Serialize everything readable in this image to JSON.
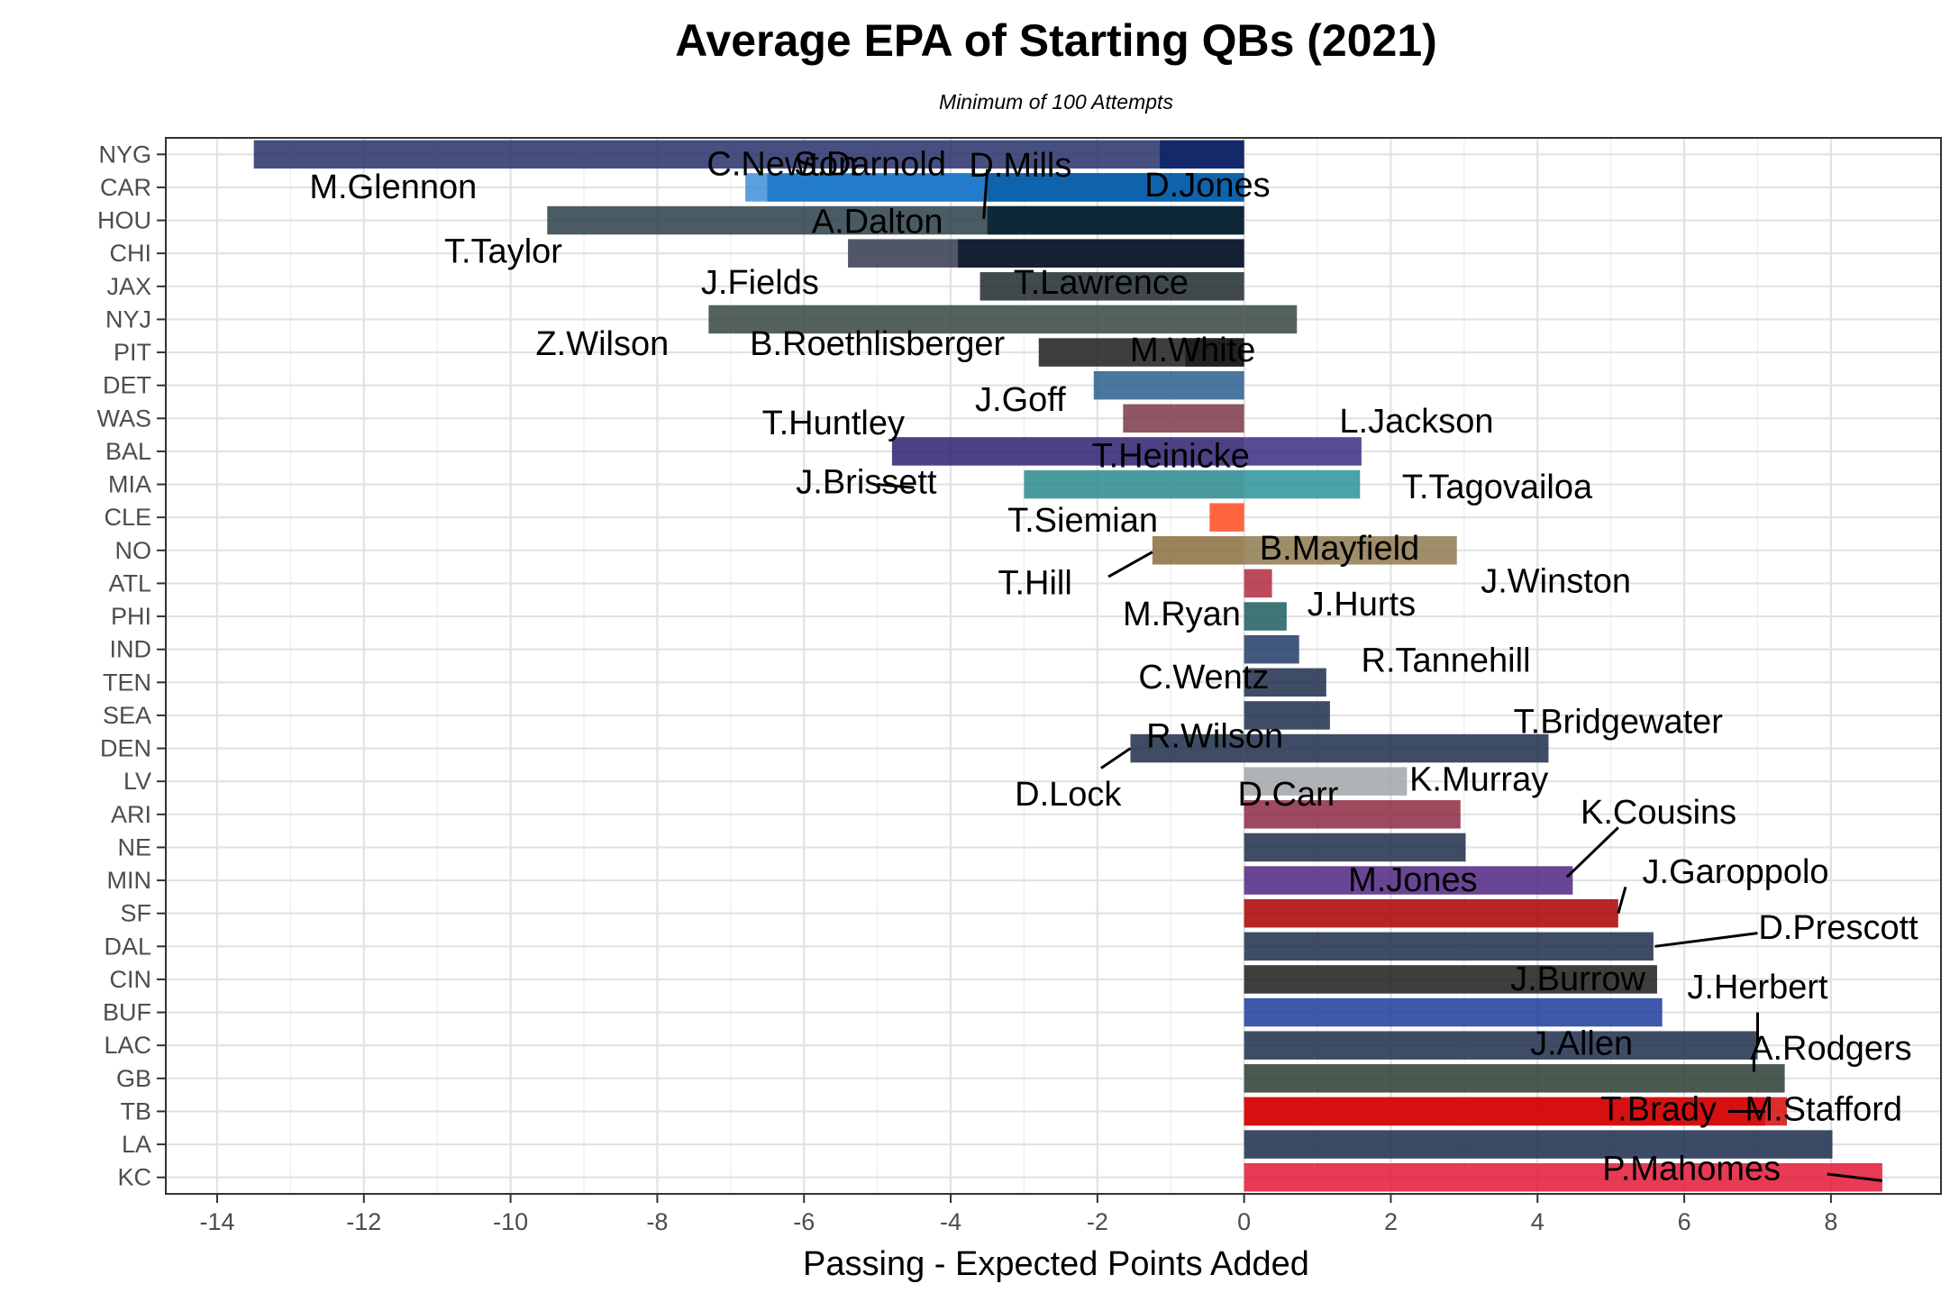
{
  "chart_data": {
    "type": "bar",
    "orientation": "horizontal",
    "title": "Average EPA of Starting QBs (2021)",
    "subtitle": "Minimum of 100 Attempts",
    "xlabel": "Passing - Expected Points Added",
    "ylabel": "",
    "xlim": [
      -14.7,
      9.5
    ],
    "xticks": [
      -14,
      -12,
      -10,
      -8,
      -6,
      -4,
      -2,
      0,
      2,
      4,
      6,
      8
    ],
    "grid": true,
    "legend": "none",
    "categories": [
      "NYG",
      "CAR",
      "HOU",
      "CHI",
      "JAX",
      "NYJ",
      "PIT",
      "DET",
      "WAS",
      "BAL",
      "MIA",
      "CLE",
      "NO",
      "ATL",
      "PHI",
      "IND",
      "TEN",
      "SEA",
      "DEN",
      "LV",
      "ARI",
      "NE",
      "MIN",
      "SF",
      "DAL",
      "CIN",
      "BUF",
      "LAC",
      "GB",
      "TB",
      "LA",
      "KC"
    ],
    "bars": [
      {
        "team": "NYG",
        "value": -13.5,
        "color": "#27306a"
      },
      {
        "team": "NYG",
        "value": -1.15,
        "color": "#0b2265"
      },
      {
        "team": "CAR",
        "value": -6.8,
        "color": "#3d8fd8"
      },
      {
        "team": "CAR",
        "value": -6.5,
        "color": "#1a74c8"
      },
      {
        "team": "CAR",
        "value": -3.5,
        "color": "#0c5fa8"
      },
      {
        "team": "HOU",
        "value": -9.5,
        "color": "#2c3e48"
      },
      {
        "team": "HOU",
        "value": -3.5,
        "color": "#03202f"
      },
      {
        "team": "CHI",
        "value": -5.4,
        "color": "#343a4c"
      },
      {
        "team": "CHI",
        "value": -3.9,
        "color": "#0b162a"
      },
      {
        "team": "JAX",
        "value": -3.6,
        "color": "#1f2a2e"
      },
      {
        "team": "NYJ",
        "value": -7.3,
        "color": "#36473f"
      },
      {
        "team": "NYJ",
        "value": 0.72,
        "color": "#36473f"
      },
      {
        "team": "PIT",
        "value": -2.8,
        "color": "#1c1c1c"
      },
      {
        "team": "PIT",
        "value": -0.8,
        "color": "#1c1c1c"
      },
      {
        "team": "DET",
        "value": -2.05,
        "color": "#2a5f8e"
      },
      {
        "team": "WAS",
        "value": -1.65,
        "color": "#7b3a48"
      },
      {
        "team": "BAL",
        "value": -4.8,
        "color": "#2e1f6e"
      },
      {
        "team": "BAL",
        "value": 1.6,
        "color": "#3b2a80"
      },
      {
        "team": "MIA",
        "value": -3.0,
        "color": "#2a8a8f"
      },
      {
        "team": "MIA",
        "value": 1.58,
        "color": "#2a9396"
      },
      {
        "team": "CLE",
        "value": -0.47,
        "color": "#ff4b1f"
      },
      {
        "team": "NO",
        "value": -1.25,
        "color": "#8a6f3c"
      },
      {
        "team": "NO",
        "value": 2.9,
        "color": "#8f7a50"
      },
      {
        "team": "ATL",
        "value": 0.38,
        "color": "#b22a3e"
      },
      {
        "team": "PHI",
        "value": 0.58,
        "color": "#1e5d5e"
      },
      {
        "team": "IND",
        "value": 0.75,
        "color": "#213b68"
      },
      {
        "team": "TEN",
        "value": 1.12,
        "color": "#1d2d4a"
      },
      {
        "team": "SEA",
        "value": 1.17,
        "color": "#1d2d4a"
      },
      {
        "team": "DEN",
        "value": -1.55,
        "color": "#1d2d4a"
      },
      {
        "team": "DEN",
        "value": 4.15,
        "color": "#1d2d4a"
      },
      {
        "team": "LV",
        "value": 2.22,
        "color": "#a1a6a9"
      },
      {
        "team": "ARI",
        "value": 2.95,
        "color": "#8c2a42"
      },
      {
        "team": "NE",
        "value": 3.02,
        "color": "#1d2d4a"
      },
      {
        "team": "MIN",
        "value": 4.48,
        "color": "#4f2683"
      },
      {
        "team": "SF",
        "value": 5.1,
        "color": "#aa0000"
      },
      {
        "team": "DAL",
        "value": 5.58,
        "color": "#1d2d4a"
      },
      {
        "team": "CIN",
        "value": 5.63,
        "color": "#1c1c1c"
      },
      {
        "team": "BUF",
        "value": 5.7,
        "color": "#1f3b9a"
      },
      {
        "team": "LAC",
        "value": 7.0,
        "color": "#1d2d4a"
      },
      {
        "team": "GB",
        "value": 7.37,
        "color": "#2b3d33"
      },
      {
        "team": "TB",
        "value": 7.4,
        "color": "#d50a0a"
      },
      {
        "team": "TB",
        "value": 7.1,
        "color": "#d50a0a"
      },
      {
        "team": "LA",
        "value": 8.02,
        "color": "#1b2a4a"
      },
      {
        "team": "KC",
        "value": 8.7,
        "color": "#e31837"
      }
    ],
    "labels": [
      {
        "text": "M.Glennon",
        "x": -11.6,
        "row": 1
      },
      {
        "text": "C.Newton",
        "x": -6.3,
        "row": 0.3
      },
      {
        "text": "S.Darnold",
        "x": -5.1,
        "row": 0.3
      },
      {
        "text": "D.Mills",
        "x": -3.05,
        "row": 0.35
      },
      {
        "text": "D.Jones",
        "x": -0.5,
        "row": 0.95
      },
      {
        "text": "A.Dalton",
        "x": -5.0,
        "row": 2.05
      },
      {
        "text": "T.Taylor",
        "x": -10.1,
        "row": 2.95
      },
      {
        "text": "J.Fields",
        "x": -6.6,
        "row": 3.9
      },
      {
        "text": "T.Lawrence",
        "x": -1.95,
        "row": 3.9
      },
      {
        "text": "Z.Wilson",
        "x": -8.75,
        "row": 5.75
      },
      {
        "text": "B.Roethlisberger",
        "x": -5.0,
        "row": 5.75
      },
      {
        "text": "M.White",
        "x": -0.7,
        "row": 5.95
      },
      {
        "text": "J.Goff",
        "x": -3.05,
        "row": 7.45
      },
      {
        "text": "T.Huntley",
        "x": -5.6,
        "row": 8.15
      },
      {
        "text": "L.Jackson",
        "x": 2.35,
        "row": 8.1
      },
      {
        "text": "T.Heinicke",
        "x": -1.0,
        "row": 9.15
      },
      {
        "text": "J.Brissett",
        "x": -5.15,
        "row": 9.95
      },
      {
        "text": "T.Tagovailoa",
        "x": 3.45,
        "row": 10.1
      },
      {
        "text": "T.Siemian",
        "x": -2.2,
        "row": 11.1
      },
      {
        "text": "B.Mayfield",
        "x": 1.3,
        "row": 11.95
      },
      {
        "text": "T.Hill",
        "x": -2.85,
        "row": 13.0
      },
      {
        "text": "J.Winston",
        "x": 4.25,
        "row": 12.95
      },
      {
        "text": "J.Hurts",
        "x": 1.6,
        "row": 13.65
      },
      {
        "text": "M.Ryan",
        "x": -0.85,
        "row": 13.95
      },
      {
        "text": "R.Tannehill",
        "x": 2.75,
        "row": 15.35
      },
      {
        "text": "C.Wentz",
        "x": -0.55,
        "row": 15.85
      },
      {
        "text": "T.Bridgewater",
        "x": 5.1,
        "row": 17.2
      },
      {
        "text": "R.Wilson",
        "x": -0.4,
        "row": 17.65
      },
      {
        "text": "D.Lock",
        "x": -2.4,
        "row": 19.4
      },
      {
        "text": "K.Murray",
        "x": 3.2,
        "row": 18.95
      },
      {
        "text": "D.Carr",
        "x": 0.6,
        "row": 19.4
      },
      {
        "text": "K.Cousins",
        "x": 5.65,
        "row": 19.95
      },
      {
        "text": "M.Jones",
        "x": 2.3,
        "row": 22.0
      },
      {
        "text": "J.Garoppolo",
        "x": 6.7,
        "row": 21.75
      },
      {
        "text": "D.Prescott",
        "x": 8.1,
        "row": 23.45
      },
      {
        "text": "J.Burrow",
        "x": 4.55,
        "row": 25.0
      },
      {
        "text": "J.Herbert",
        "x": 7.0,
        "row": 25.25
      },
      {
        "text": "J.Allen",
        "x": 4.6,
        "row": 26.95
      },
      {
        "text": "A.Rodgers",
        "x": 8.0,
        "row": 27.1
      },
      {
        "text": "T.Brady",
        "x": 5.65,
        "row": 28.95
      },
      {
        "text": "M.Stafford",
        "x": 7.9,
        "row": 28.95
      },
      {
        "text": "P.Mahomes",
        "x": 6.1,
        "row": 30.75
      }
    ]
  }
}
